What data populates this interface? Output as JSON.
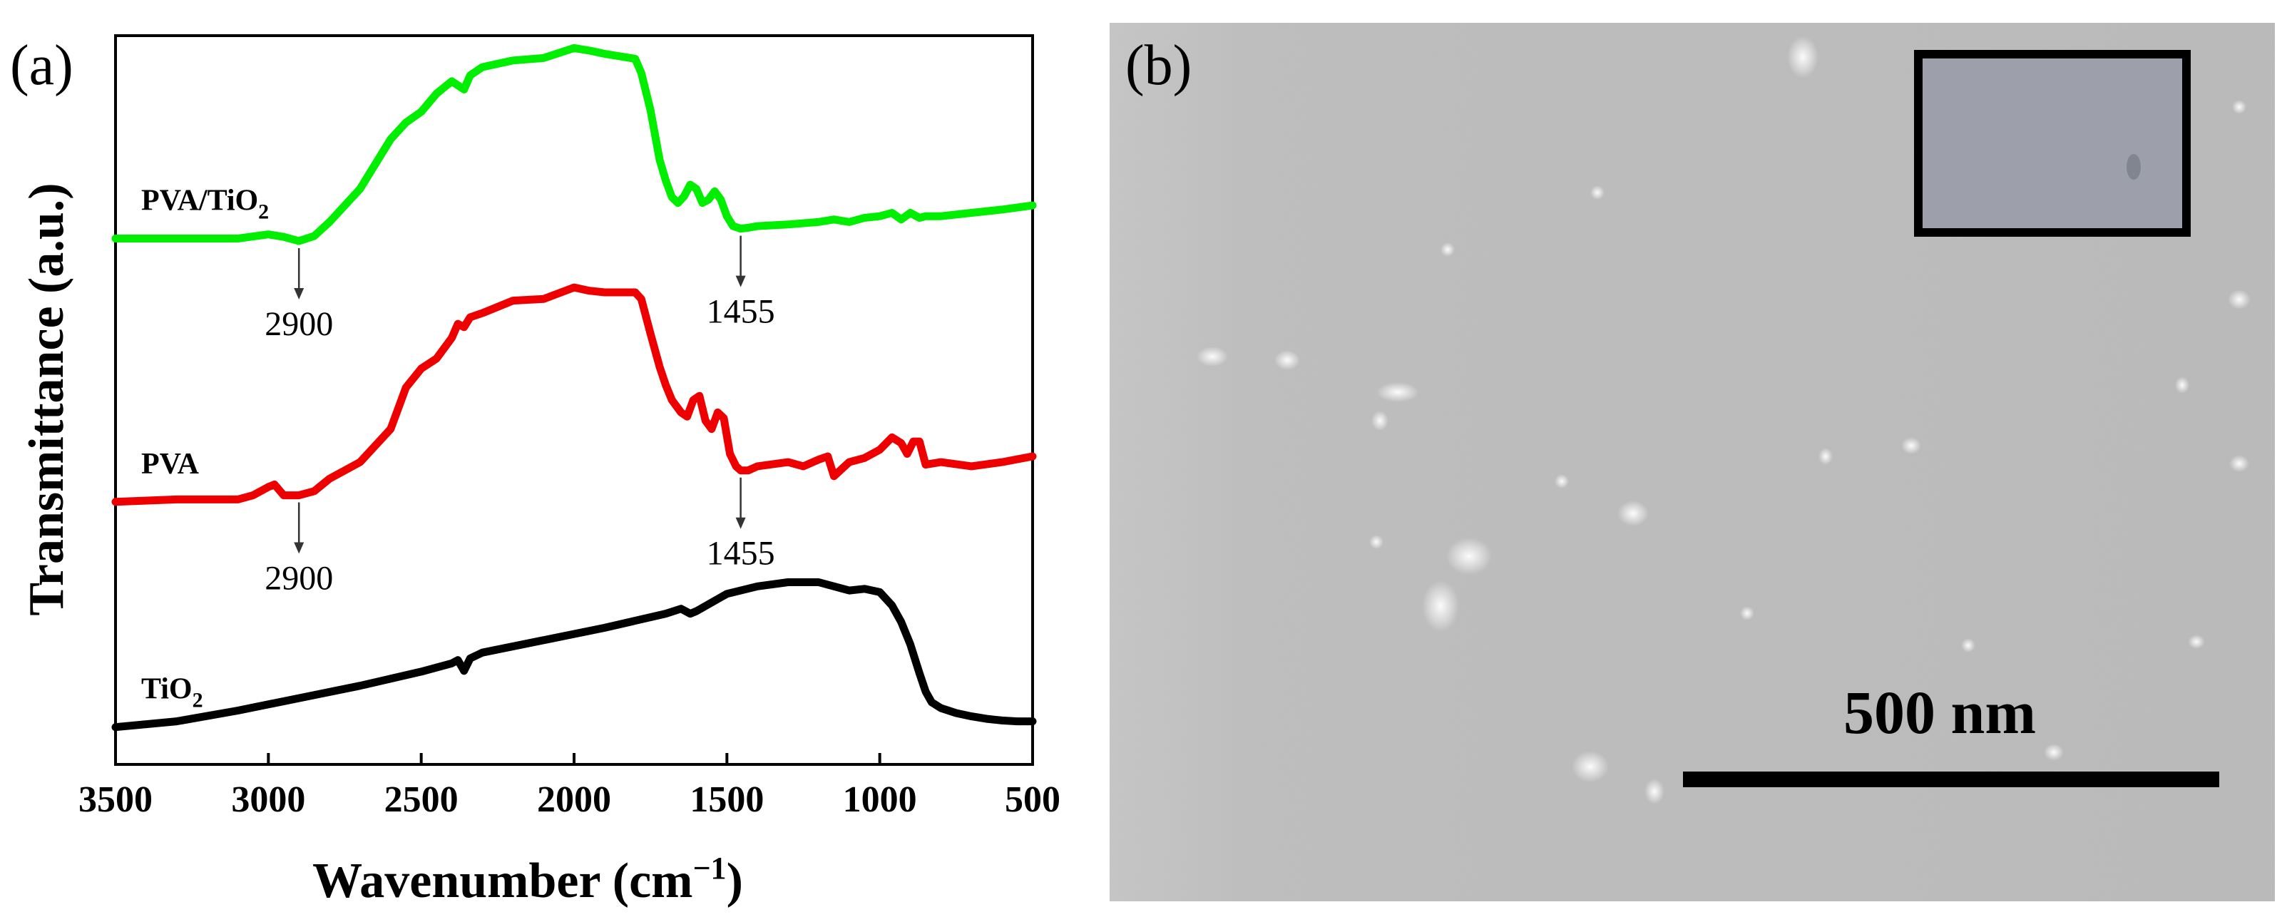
{
  "panel_a": {
    "label": "(a)",
    "chart_data": {
      "type": "line",
      "title": "",
      "xlabel_main": "Wavenumber (cm",
      "xlabel_sup": "−1",
      "xlabel_close": ")",
      "ylabel": "Transmittance (a.u.)",
      "xlim": [
        3500,
        500
      ],
      "ylim": [
        -0.2,
        8.6
      ],
      "xticks": [
        3500,
        3000,
        2500,
        2000,
        1500,
        1000,
        500
      ],
      "yticks_shown": false,
      "series": [
        {
          "name": "PVA/TiO2",
          "label_main": "PVA/TiO",
          "label_sub": "2",
          "color": "#00ee00",
          "x": [
            3500,
            3300,
            3100,
            3000,
            2950,
            2900,
            2850,
            2800,
            2700,
            2600,
            2550,
            2500,
            2450,
            2400,
            2380,
            2360,
            2340,
            2300,
            2200,
            2100,
            2000,
            1950,
            1900,
            1800,
            1780,
            1750,
            1720,
            1700,
            1680,
            1660,
            1640,
            1620,
            1600,
            1580,
            1560,
            1540,
            1520,
            1500,
            1480,
            1455,
            1430,
            1400,
            1300,
            1200,
            1150,
            1100,
            1050,
            1000,
            960,
            930,
            900,
            870,
            850,
            800,
            700,
            600,
            500
          ],
          "y": [
            6.15,
            6.15,
            6.15,
            6.2,
            6.17,
            6.12,
            6.18,
            6.35,
            6.75,
            7.35,
            7.55,
            7.68,
            7.9,
            8.05,
            8.0,
            7.95,
            8.12,
            8.22,
            8.3,
            8.33,
            8.45,
            8.42,
            8.38,
            8.32,
            8.15,
            7.7,
            7.1,
            6.85,
            6.65,
            6.58,
            6.66,
            6.8,
            6.75,
            6.58,
            6.62,
            6.72,
            6.62,
            6.42,
            6.3,
            6.27,
            6.28,
            6.3,
            6.32,
            6.35,
            6.38,
            6.35,
            6.4,
            6.42,
            6.46,
            6.38,
            6.46,
            6.4,
            6.42,
            6.42,
            6.46,
            6.5,
            6.55
          ],
          "annotations": [
            {
              "text": "2900",
              "x": 2900,
              "y": 6.12
            },
            {
              "text": "1455",
              "x": 1455,
              "y": 6.27
            }
          ]
        },
        {
          "name": "PVA",
          "label_main": "PVA",
          "label_sub": "",
          "color": "#ee0000",
          "x": [
            3500,
            3300,
            3100,
            3050,
            3000,
            2980,
            2950,
            2900,
            2850,
            2800,
            2750,
            2700,
            2600,
            2550,
            2500,
            2450,
            2400,
            2380,
            2360,
            2340,
            2300,
            2200,
            2100,
            2000,
            1950,
            1900,
            1800,
            1780,
            1750,
            1720,
            1700,
            1680,
            1650,
            1630,
            1610,
            1590,
            1570,
            1550,
            1530,
            1510,
            1490,
            1470,
            1455,
            1430,
            1400,
            1300,
            1250,
            1200,
            1170,
            1150,
            1100,
            1050,
            1000,
            960,
            930,
            910,
            890,
            870,
            850,
            800,
            700,
            600,
            500
          ],
          "y": [
            2.97,
            3.0,
            3.0,
            3.05,
            3.15,
            3.18,
            3.05,
            3.05,
            3.1,
            3.25,
            3.35,
            3.45,
            3.85,
            4.35,
            4.58,
            4.7,
            4.95,
            5.12,
            5.08,
            5.2,
            5.25,
            5.4,
            5.42,
            5.56,
            5.52,
            5.5,
            5.5,
            5.42,
            5.0,
            4.6,
            4.38,
            4.2,
            4.05,
            4.0,
            4.2,
            4.25,
            3.95,
            3.85,
            4.05,
            3.98,
            3.55,
            3.4,
            3.35,
            3.35,
            3.4,
            3.45,
            3.4,
            3.48,
            3.52,
            3.28,
            3.45,
            3.5,
            3.6,
            3.75,
            3.68,
            3.55,
            3.7,
            3.7,
            3.42,
            3.45,
            3.4,
            3.45,
            3.52
          ],
          "annotations": [
            {
              "text": "2900",
              "x": 2900,
              "y": 3.05
            },
            {
              "text": "1455",
              "x": 1455,
              "y": 3.35
            }
          ]
        },
        {
          "name": "TiO2",
          "label_main": "TiO",
          "label_sub": "2",
          "color": "#000000",
          "x": [
            3500,
            3300,
            3100,
            2900,
            2700,
            2500,
            2400,
            2380,
            2360,
            2340,
            2300,
            2100,
            1900,
            1700,
            1650,
            1620,
            1600,
            1500,
            1400,
            1300,
            1250,
            1200,
            1100,
            1050,
            1000,
            960,
            930,
            900,
            870,
            850,
            830,
            800,
            750,
            700,
            650,
            600,
            550,
            500
          ],
          "y": [
            0.25,
            0.32,
            0.45,
            0.6,
            0.75,
            0.92,
            1.02,
            1.06,
            0.93,
            1.08,
            1.15,
            1.3,
            1.45,
            1.62,
            1.68,
            1.62,
            1.65,
            1.86,
            1.95,
            2.0,
            2.0,
            2.0,
            1.9,
            1.92,
            1.88,
            1.72,
            1.52,
            1.25,
            0.9,
            0.68,
            0.55,
            0.48,
            0.42,
            0.38,
            0.35,
            0.33,
            0.32,
            0.32
          ]
        }
      ]
    }
  },
  "panel_b": {
    "label": "(b)",
    "scale_bar_label": "500 nm"
  }
}
